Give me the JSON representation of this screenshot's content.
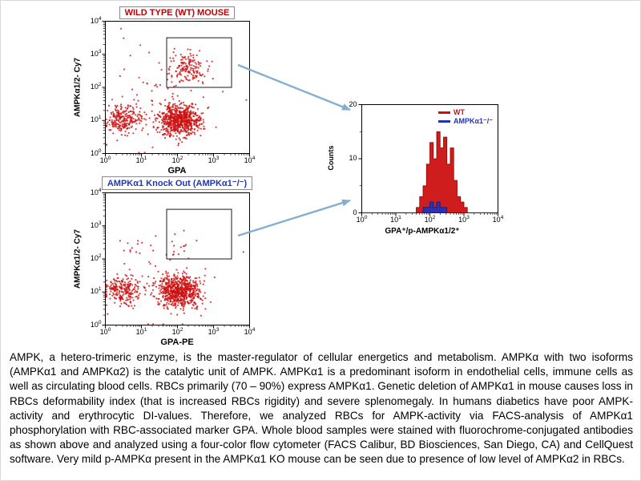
{
  "figure": {
    "background": "#ffffff",
    "arrow_color": "#85aed3",
    "gate_color": "#1a1a1a"
  },
  "caption": {
    "text": "AMPK, a hetero-trimeric enzyme, is the master-regulator of cellular energetics and metabolism. AMPKα with two isoforms (AMPKα1 and AMPKα2) is the catalytic unit of AMPK. AMPKα1 is a predominant isoform in endothelial cells, immune cells as well as circulating blood cells. RBCs primarily (70 – 90%) express AMPKα1. Genetic deletion of AMPKα1 in mouse causes loss in RBCs deformability index (that is increased RBCs rigidity) and severe splenomegaly. In humans diabetics have poor AMPK-activity and erythrocytic DI-values. Therefore, we analyzed RBCs for AMPK-activity via FACS-analysis of AMPKα1 phosphorylation with RBC-associated marker GPA. Whole blood samples were stained with fluorochrome-conjugated antibodies as shown above and analyzed using a four-color flow cytometer (FACS Calibur, BD Biosciences, San Diego, CA) and CellQuest software. Very mild p-AMPKα present in the AMPKα1 KO mouse can be seen due to presence of low level of AMPKα2 in RBCs."
  },
  "chart_data": [
    {
      "id": "wt_dot_plot",
      "type": "scatter",
      "title": "WILD TYPE (WT) MOUSE",
      "title_color": "#c00000",
      "xlabel": "GPA",
      "ylabel": "AMPKα1/2- Cy7",
      "x_scale": "log10",
      "y_scale": "log10",
      "xlim_exp": [
        0,
        4
      ],
      "ylim_exp": [
        0,
        4
      ],
      "point_color": "#cc1111",
      "gate": {
        "x1": 1.7,
        "y1": 2.0,
        "x2": 3.5,
        "y2": 3.5
      },
      "clusters": [
        {
          "label": "GPA-negative cells",
          "cx": 0.5,
          "cy": 1.05,
          "sdx": 0.26,
          "sdy": 0.2,
          "n": 230
        },
        {
          "label": "GPA-positive RBCs",
          "cx": 2.05,
          "cy": 1.0,
          "sdx": 0.3,
          "sdy": 0.24,
          "n": 700
        },
        {
          "label": "GPA+/p-AMPK+ gated population",
          "cx": 2.3,
          "cy": 2.6,
          "sdx": 0.25,
          "sdy": 0.24,
          "n": 150
        },
        {
          "label": "background",
          "cx": 1.4,
          "cy": 1.5,
          "sdx": 0.85,
          "sdy": 0.8,
          "n": 70
        }
      ]
    },
    {
      "id": "ko_dot_plot",
      "type": "scatter",
      "title": "AMPKα1 Knock Out (AMPKα1⁻/⁻)",
      "title_color": "#2038b0",
      "xlabel": "GPA-PE",
      "ylabel": "AMPKα1/2- Cy7",
      "x_scale": "log10",
      "y_scale": "log10",
      "xlim_exp": [
        0,
        4
      ],
      "ylim_exp": [
        0,
        4
      ],
      "point_color": "#cc1111",
      "gate": {
        "x1": 1.7,
        "y1": 2.0,
        "x2": 3.5,
        "y2": 3.5
      },
      "clusters": [
        {
          "label": "GPA-negative cells",
          "cx": 0.5,
          "cy": 1.05,
          "sdx": 0.26,
          "sdy": 0.2,
          "n": 230
        },
        {
          "label": "GPA-positive RBCs",
          "cx": 2.05,
          "cy": 1.0,
          "sdx": 0.3,
          "sdy": 0.24,
          "n": 700
        },
        {
          "label": "residual p-AMPK in gate",
          "cx": 2.2,
          "cy": 2.35,
          "sdx": 0.3,
          "sdy": 0.25,
          "n": 10
        },
        {
          "label": "background",
          "cx": 1.4,
          "cy": 1.5,
          "sdx": 0.85,
          "sdy": 0.8,
          "n": 60
        }
      ]
    },
    {
      "id": "overlay_histogram",
      "type": "histogram",
      "xlabel": "GPA⁺/p-AMPKα1/2⁺",
      "ylabel": "Counts",
      "x_scale": "log10",
      "xlim_exp": [
        0,
        4
      ],
      "ylim": [
        0,
        20
      ],
      "yticks": [
        0,
        10,
        20
      ],
      "yticks_minor": [
        5,
        15
      ],
      "bin_log_start": 0,
      "bin_log_step": 0.1,
      "legend_position": "top-right",
      "series": [
        {
          "name": "WT",
          "color": "#cc1111",
          "stroke": "#8f0000",
          "values": [
            0,
            0,
            0,
            0,
            0,
            0,
            0,
            0,
            0,
            0,
            0,
            0,
            0,
            0,
            0,
            0,
            1,
            3,
            5,
            9,
            13,
            10,
            15,
            12,
            14,
            9,
            12,
            6,
            3,
            2,
            1,
            0,
            0,
            0,
            0,
            0,
            0,
            0,
            0,
            0
          ]
        },
        {
          "name": "AMPKα1⁻/⁻",
          "color": "#2233bb",
          "stroke": "#101a80",
          "values": [
            0,
            0,
            0,
            0,
            0,
            0,
            0,
            0,
            0,
            0,
            0,
            0,
            0,
            0,
            0,
            0,
            0,
            0,
            1,
            1,
            2,
            1,
            2,
            1,
            1,
            0,
            0,
            0,
            0,
            0,
            0,
            0,
            0,
            0,
            0,
            0,
            0,
            0,
            0,
            0
          ]
        }
      ]
    }
  ]
}
